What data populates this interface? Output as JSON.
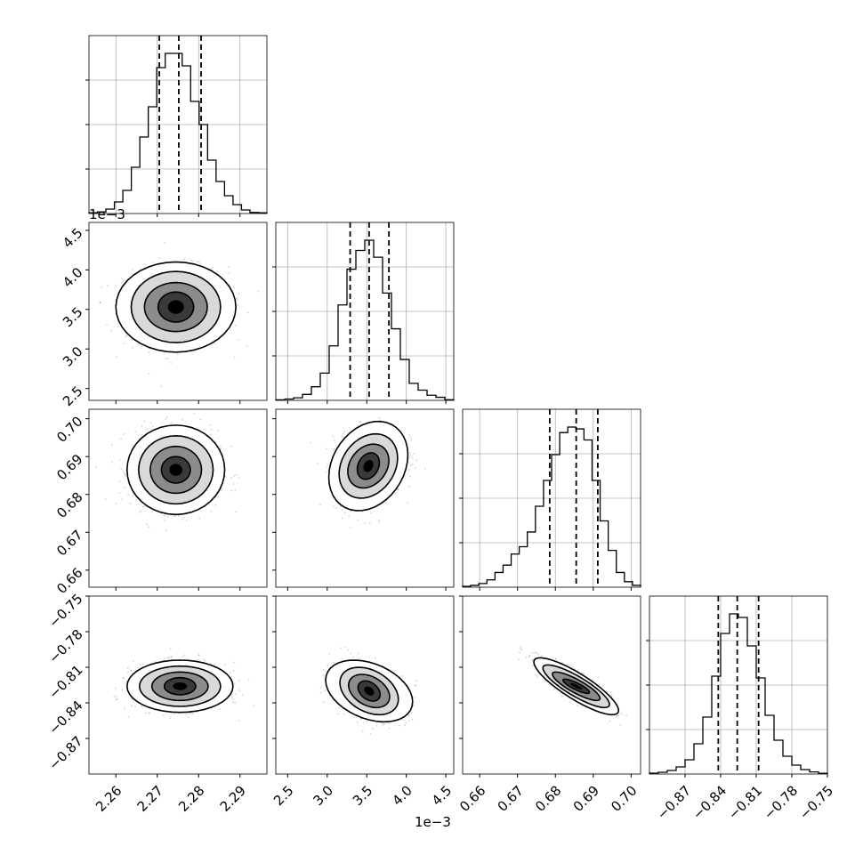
{
  "chart_data": {
    "type": "corner",
    "panel_grid": [
      4,
      4
    ],
    "grid": true,
    "parameters": [
      {
        "ticks": [
          2.26,
          2.27,
          2.28,
          2.29
        ],
        "tick_labels": [
          "2.26",
          "2.27",
          "2.28",
          "2.29"
        ],
        "range": [
          2.2535,
          2.2965
        ],
        "offset_label": "1e−3",
        "quantiles": [
          2.2705,
          2.2752,
          2.2806
        ],
        "hist": [
          0.4,
          0.9,
          2.5,
          6.5,
          13,
          26,
          43,
          60,
          82,
          90,
          90,
          83,
          63,
          50,
          30,
          18,
          10,
          5,
          2,
          0.6,
          0.4
        ]
      },
      {
        "ticks": [
          2.5,
          3.0,
          3.5,
          4.0,
          4.5
        ],
        "tick_labels": [
          "2.5",
          "3.0",
          "3.5",
          "4.0",
          "4.5"
        ],
        "range": [
          2.35,
          4.6
        ],
        "offset_label": "1e−3",
        "quantiles": [
          3.29,
          3.53,
          3.78
        ],
        "hist": [
          0.3,
          0.8,
          1.5,
          3.5,
          8,
          16,
          32,
          56,
          77,
          88,
          94,
          84,
          63,
          42,
          24,
          10,
          6,
          3,
          1.8,
          0.4
        ]
      },
      {
        "ticks": [
          0.66,
          0.67,
          0.68,
          0.69,
          0.7
        ],
        "tick_labels": [
          "0.66",
          "0.67",
          "0.68",
          "0.69",
          "0.70"
        ],
        "range": [
          0.6555,
          0.7025
        ],
        "quantiles": [
          0.6785,
          0.6855,
          0.6912
        ],
        "hist": [
          0.5,
          1,
          2,
          4,
          8,
          12,
          18,
          22,
          30,
          44,
          58,
          72,
          84,
          87,
          86,
          80,
          58,
          36,
          20,
          8,
          3,
          1
        ]
      },
      {
        "ticks": [
          -0.87,
          -0.84,
          -0.81,
          -0.78,
          -0.75
        ],
        "tick_labels": [
          "−0.87",
          "−0.84",
          "−0.81",
          "−0.78",
          "−0.75"
        ],
        "range": [
          -0.9,
          -0.75
        ],
        "quantiles": [
          -0.842,
          -0.826,
          -0.808
        ],
        "hist": [
          0.5,
          1,
          2,
          4,
          8,
          17,
          32,
          55,
          79,
          90,
          88,
          72,
          54,
          33,
          19,
          10,
          5,
          2.5,
          1.2,
          0.4
        ]
      }
    ],
    "contours_2d": [
      {
        "x": 0,
        "y": 1,
        "center": [
          2.2745,
          3.53
        ],
        "widths": [
          [
            0.0043,
            0.19
          ],
          [
            0.0076,
            0.31
          ],
          [
            0.0108,
            0.45
          ],
          [
            0.0145,
            0.57
          ]
        ],
        "rho": 0
      },
      {
        "x": 0,
        "y": 2,
        "center": [
          2.2745,
          0.6865
        ],
        "widths": [
          [
            0.0035,
            0.0035
          ],
          [
            0.0062,
            0.0062
          ],
          [
            0.009,
            0.009
          ],
          [
            0.0118,
            0.0118
          ]
        ],
        "rho": 0
      },
      {
        "x": 1,
        "y": 2,
        "center": [
          3.52,
          0.6875
        ],
        "widths": [
          [
            0.14,
            0.0035
          ],
          [
            0.26,
            0.0058
          ],
          [
            0.37,
            0.0085
          ],
          [
            0.5,
            0.0118
          ]
        ],
        "rho": 0.25
      },
      {
        "x": 0,
        "y": 3,
        "center": [
          2.2755,
          -0.826
        ],
        "widths": [
          [
            0.0038,
            0.0072
          ],
          [
            0.0068,
            0.012
          ],
          [
            0.0098,
            0.017
          ],
          [
            0.0128,
            0.022
          ]
        ],
        "rho": 0
      },
      {
        "x": 1,
        "y": 3,
        "center": [
          3.53,
          -0.83
        ],
        "widths": [
          [
            0.14,
            0.0085
          ],
          [
            0.26,
            0.014
          ],
          [
            0.37,
            0.02
          ],
          [
            0.55,
            0.026
          ]
        ],
        "rho": -0.35
      },
      {
        "x": 2,
        "y": 3,
        "center": [
          0.6855,
          -0.826
        ],
        "widths": [
          [
            0.0035,
            0.006
          ],
          [
            0.0063,
            0.012
          ],
          [
            0.0088,
            0.018
          ],
          [
            0.0112,
            0.024
          ]
        ],
        "rho": -0.85
      }
    ]
  }
}
